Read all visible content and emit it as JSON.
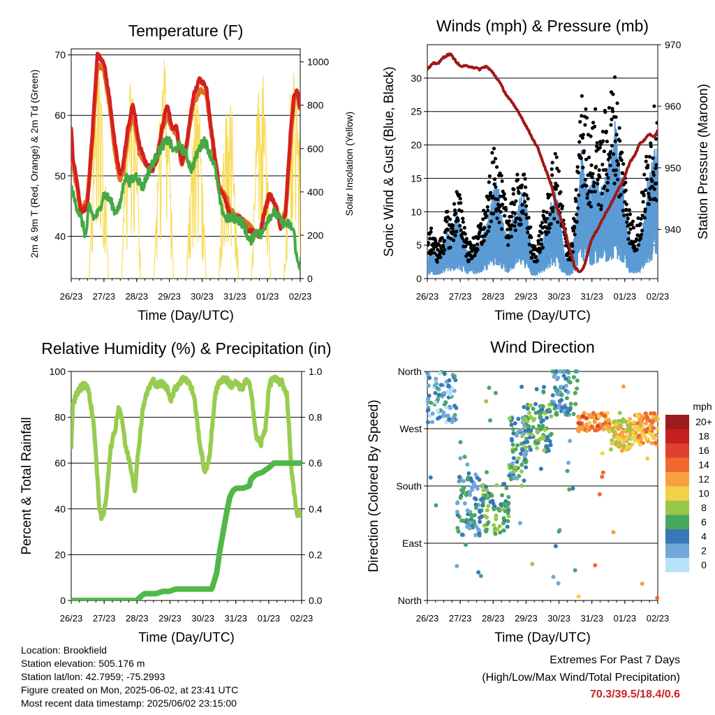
{
  "day_ticks": [
    "26/23",
    "27/23",
    "28/23",
    "29/23",
    "30/23",
    "31/23",
    "01/23",
    "02/23"
  ],
  "chart_data": [
    {
      "type": "line",
      "title": "Temperature (F)",
      "xlabel": "Time (Day/UTC)",
      "ylabel": "2m & 9m T (Red, Orange) & 2m Td (Green)",
      "ylabel_right": "Solar Insolation (Yellow)",
      "ylim": [
        33,
        71
      ],
      "ylim_right": [
        0,
        1060
      ],
      "yticks": [
        "40",
        "50",
        "60",
        "70"
      ],
      "yticks_right": [
        "0",
        "200",
        "400",
        "600",
        "800",
        "1000"
      ],
      "grid": "horizontal",
      "x_days": [
        0,
        7.05
      ],
      "series": [
        {
          "color": "#e07020",
          "axis": "left",
          "width": 6,
          "x": [
            0,
            0.05,
            0.15,
            0.3,
            0.5,
            0.65,
            0.8,
            1.0,
            1.2,
            1.35,
            1.5,
            1.6,
            1.75,
            1.9,
            2.1,
            2.3,
            2.5,
            2.65,
            2.8,
            2.95,
            3.1,
            3.25,
            3.4,
            3.55,
            3.75,
            3.95,
            4.15,
            4.3,
            4.45,
            4.55,
            4.7,
            4.8,
            4.9,
            5.0,
            5.2,
            5.4,
            5.6,
            5.8,
            5.95,
            6.1,
            6.3,
            6.45,
            6.6,
            6.75,
            6.85,
            6.95,
            7.05
          ],
          "y": [
            57,
            52,
            49,
            44,
            46,
            56,
            68,
            68,
            61,
            54,
            49,
            51,
            57,
            60,
            54,
            52,
            51,
            53,
            58,
            60,
            58,
            57,
            52,
            55,
            62,
            64,
            64,
            58,
            52,
            48,
            47,
            46,
            44,
            44,
            43,
            42,
            41,
            40,
            44,
            47,
            45,
            42,
            44,
            56,
            62,
            64,
            61
          ]
        },
        {
          "color": "#d42020",
          "axis": "left",
          "width": 5,
          "x": [
            0,
            0.05,
            0.15,
            0.3,
            0.5,
            0.65,
            0.8,
            1.0,
            1.2,
            1.35,
            1.5,
            1.6,
            1.75,
            1.9,
            2.1,
            2.3,
            2.5,
            2.65,
            2.8,
            2.95,
            3.1,
            3.25,
            3.4,
            3.55,
            3.75,
            3.95,
            4.15,
            4.3,
            4.45,
            4.55,
            4.7,
            4.8,
            4.9,
            5.0,
            5.2,
            5.4,
            5.6,
            5.8,
            5.95,
            6.1,
            6.3,
            6.45,
            6.6,
            6.75,
            6.85,
            6.95,
            7.05
          ],
          "y": [
            58,
            53,
            50,
            44,
            45,
            57,
            70,
            69,
            62,
            55,
            50,
            52,
            58,
            62,
            55,
            52,
            51,
            53,
            58,
            62,
            58,
            58,
            52,
            55,
            63,
            66,
            65,
            58,
            52,
            48,
            47,
            45,
            43,
            43,
            43,
            41,
            41,
            40,
            44,
            47,
            45,
            41,
            44,
            57,
            63,
            64,
            61
          ]
        },
        {
          "color": "#45a845",
          "axis": "left",
          "width": 4,
          "x": [
            0,
            0.1,
            0.3,
            0.45,
            0.55,
            0.7,
            0.85,
            1.0,
            1.2,
            1.35,
            1.5,
            1.65,
            1.8,
            2.0,
            2.2,
            2.4,
            2.6,
            2.8,
            3.0,
            3.15,
            3.3,
            3.5,
            3.7,
            3.9,
            4.1,
            4.25,
            4.4,
            4.5,
            4.6,
            4.75,
            4.9,
            5.1,
            5.3,
            5.5,
            5.7,
            5.85,
            6.05,
            6.25,
            6.4,
            6.55,
            6.7,
            6.85,
            6.95,
            7.05
          ],
          "y": [
            48,
            46,
            43,
            40,
            45,
            43,
            44,
            47,
            46,
            44,
            45,
            50,
            49,
            50,
            48,
            51,
            53,
            55,
            56,
            54,
            55,
            54,
            51,
            54,
            56,
            54,
            52,
            49,
            45,
            43,
            43,
            43,
            42,
            39,
            41,
            40,
            43,
            44,
            43,
            42,
            42,
            41,
            36,
            35
          ]
        }
      ],
      "insolation_peaks_w_m2": [
        1020,
        1000,
        1040,
        900,
        980,
        1000,
        1040
      ]
    },
    {
      "type": "line",
      "title": "Winds (mph) & Pressure (mb)",
      "xlabel": "Time (Day/UTC)",
      "ylabel": "Sonic Wind & Gust (Blue, Black)",
      "ylabel_right": "Station Pressure (Maroon)",
      "ylim": [
        0,
        35
      ],
      "ylim_right": [
        932,
        970
      ],
      "yticks": [
        "0",
        "5",
        "10",
        "15",
        "20",
        "25",
        "30"
      ],
      "yticks_right": [
        "940",
        "950",
        "960",
        "970"
      ],
      "grid": "horizontal",
      "x_days": [
        0,
        7.05
      ],
      "pressure": {
        "color": "#a01818",
        "x": [
          0,
          0.2,
          0.35,
          0.5,
          0.7,
          0.85,
          1.0,
          1.3,
          1.6,
          1.8,
          2.0,
          2.2,
          2.4,
          2.6,
          2.8,
          3.0,
          3.2,
          3.4,
          3.6,
          3.8,
          4.0,
          4.2,
          4.4,
          4.5,
          4.65,
          4.8,
          5.0,
          5.2,
          5.4,
          5.6,
          5.8,
          6.0,
          6.2,
          6.35,
          6.5,
          6.65,
          6.8,
          6.95,
          7.05
        ],
        "y": [
          966,
          967,
          967,
          968,
          968.5,
          967.5,
          966.5,
          966.5,
          966,
          966.5,
          965.5,
          964,
          962,
          960.5,
          959,
          957,
          955,
          953,
          950,
          947,
          943,
          940,
          936,
          934,
          933,
          934,
          938,
          940,
          942,
          944,
          946,
          948,
          951,
          952,
          954,
          954.5,
          955.5,
          955,
          956
        ]
      },
      "wind": {
        "color": "#5b9bd5",
        "x": [
          0,
          0.15,
          0.3,
          0.45,
          0.6,
          0.75,
          0.9,
          1.05,
          1.25,
          1.45,
          1.65,
          1.85,
          2.0,
          2.15,
          2.3,
          2.45,
          2.6,
          2.75,
          2.9,
          3.05,
          3.2,
          3.35,
          3.5,
          3.65,
          3.8,
          3.95,
          4.1,
          4.25,
          4.4,
          4.55,
          4.7,
          4.85,
          5.0,
          5.15,
          5.3,
          5.45,
          5.6,
          5.75,
          5.9,
          6.05,
          6.2,
          6.35,
          6.5,
          6.65,
          6.8,
          6.95,
          7.05
        ],
        "y": [
          2,
          3,
          2,
          3,
          5,
          4,
          7,
          5,
          3,
          3,
          4,
          6,
          9,
          10,
          6,
          4,
          6,
          8,
          9,
          7,
          2,
          2,
          4,
          5,
          8,
          9,
          5,
          2,
          2,
          6,
          13,
          11,
          9,
          12,
          9,
          11,
          13,
          16,
          12,
          8,
          4,
          3,
          4,
          7,
          12,
          14,
          13
        ]
      },
      "gust": {
        "color": "#000000",
        "x": [
          0,
          0.15,
          0.3,
          0.45,
          0.6,
          0.75,
          0.9,
          1.05,
          1.25,
          1.45,
          1.65,
          1.85,
          2.0,
          2.15,
          2.3,
          2.45,
          2.6,
          2.75,
          2.9,
          3.05,
          3.2,
          3.35,
          3.5,
          3.65,
          3.8,
          3.95,
          4.1,
          4.25,
          4.4,
          4.55,
          4.7,
          4.85,
          5.0,
          5.15,
          5.3,
          5.45,
          5.6,
          5.75,
          5.9,
          6.05,
          6.2,
          6.35,
          6.5,
          6.65,
          6.8,
          6.95,
          7.05
        ],
        "y": [
          5,
          6,
          4,
          5,
          8,
          7,
          11,
          9,
          4,
          5,
          7,
          10,
          15,
          15,
          11,
          8,
          10,
          12,
          13,
          11,
          4,
          4,
          7,
          9,
          13,
          15,
          10,
          5,
          4,
          10,
          22,
          20,
          17,
          20,
          16,
          20,
          22,
          24,
          18,
          13,
          8,
          6,
          8,
          13,
          18,
          20,
          19
        ]
      },
      "gust_max": 32
    },
    {
      "type": "line",
      "title": "Relative Humidity (%) & Precipitation (in)",
      "xlabel": "Time (Day/UTC)",
      "ylabel": "Percent & Total Rainfall",
      "ylim": [
        0,
        100
      ],
      "ylim_right": [
        0,
        1.0
      ],
      "yticks": [
        "0",
        "20",
        "40",
        "60",
        "80",
        "100"
      ],
      "yticks_right": [
        "0.0",
        "0.2",
        "0.4",
        "0.6",
        "0.8",
        "1.0"
      ],
      "grid": "horizontal",
      "x_days": [
        0,
        7.05
      ],
      "series": [
        {
          "color": "#98cc50",
          "axis": "left",
          "width": 6,
          "x": [
            0,
            0.05,
            0.15,
            0.3,
            0.45,
            0.55,
            0.7,
            0.85,
            0.95,
            1.05,
            1.2,
            1.35,
            1.45,
            1.55,
            1.65,
            1.8,
            1.95,
            2.05,
            2.2,
            2.35,
            2.5,
            2.65,
            2.8,
            2.95,
            3.05,
            3.2,
            3.35,
            3.5,
            3.6,
            3.75,
            3.95,
            4.1,
            4.25,
            4.4,
            4.55,
            4.7,
            4.9,
            5.05,
            5.2,
            5.35,
            5.5,
            5.65,
            5.8,
            5.95,
            6.05,
            6.15,
            6.3,
            6.45,
            6.6,
            6.75,
            6.9,
            7.05
          ],
          "y": [
            66,
            85,
            90,
            93,
            95,
            90,
            76,
            42,
            35,
            42,
            66,
            75,
            85,
            80,
            68,
            60,
            48,
            65,
            85,
            92,
            96,
            94,
            95,
            92,
            88,
            93,
            96,
            97,
            95,
            90,
            67,
            55,
            65,
            90,
            96,
            97,
            94,
            95,
            92,
            96,
            93,
            72,
            68,
            76,
            93,
            97,
            96,
            95,
            90,
            55,
            38,
            37
          ]
        },
        {
          "color": "#50b848",
          "axis": "right",
          "width": 8,
          "x": [
            0,
            0.5,
            1.0,
            1.5,
            2.0,
            2.15,
            2.25,
            2.4,
            2.6,
            2.8,
            3.0,
            3.2,
            3.4,
            3.6,
            3.8,
            4.0,
            4.3,
            4.45,
            4.55,
            4.65,
            4.75,
            4.85,
            4.95,
            5.05,
            5.25,
            5.45,
            5.5,
            5.65,
            5.85,
            6.05,
            6.2,
            6.4,
            6.6,
            6.8,
            7.05
          ],
          "y": [
            0.0,
            0.0,
            0.0,
            0.0,
            0.0,
            0.02,
            0.03,
            0.03,
            0.03,
            0.04,
            0.04,
            0.05,
            0.05,
            0.05,
            0.05,
            0.05,
            0.05,
            0.12,
            0.22,
            0.3,
            0.38,
            0.45,
            0.48,
            0.49,
            0.49,
            0.5,
            0.53,
            0.55,
            0.56,
            0.58,
            0.6,
            0.6,
            0.6,
            0.6,
            0.6
          ]
        }
      ]
    },
    {
      "type": "scatter",
      "title": "Wind Direction",
      "xlabel": "Time (Day/UTC)",
      "ylabel": "Direction (Colored By Speed)",
      "yticks": [
        "North",
        "West",
        "South",
        "East",
        "North"
      ],
      "grid": "horizontal",
      "x_days": [
        0,
        7.05
      ],
      "colorbar_title": "mph",
      "colorbar_labels": [
        "20+",
        "18",
        "16",
        "14",
        "12",
        "10",
        "8",
        "6",
        "4",
        "2",
        "0"
      ],
      "colorbar_colors": [
        "#9a1c1c",
        "#c42020",
        "#e04030",
        "#f06830",
        "#f8a040",
        "#f2d048",
        "#98c848",
        "#48a860",
        "#3878b8",
        "#70a8dc",
        "#b8e0f8"
      ],
      "direction_deg_by_period": [
        {
          "x": [
            0,
            0.9
          ],
          "dir_deg": 320,
          "spread": 40,
          "speed": 3
        },
        {
          "x": [
            0.9,
            1.6
          ],
          "dir_deg": 150,
          "spread": 50,
          "speed": 4
        },
        {
          "x": [
            1.6,
            2.5
          ],
          "dir_deg": 145,
          "spread": 40,
          "speed": 6
        },
        {
          "x": [
            2.5,
            3.05
          ],
          "dir_deg": 240,
          "spread": 50,
          "speed": 5
        },
        {
          "x": [
            3.05,
            3.8
          ],
          "dir_deg": 270,
          "spread": 40,
          "speed": 6
        },
        {
          "x": [
            3.8,
            4.6
          ],
          "dir_deg": 330,
          "spread": 40,
          "speed": 4
        },
        {
          "x": [
            4.6,
            5.6
          ],
          "dir_deg": 280,
          "spread": 15,
          "speed": 13
        },
        {
          "x": [
            5.6,
            6.3
          ],
          "dir_deg": 260,
          "spread": 25,
          "speed": 10
        },
        {
          "x": [
            6.3,
            7.05
          ],
          "dir_deg": 270,
          "spread": 25,
          "speed": 12
        }
      ]
    }
  ],
  "info": {
    "location": "Location: Brookfield",
    "elevation": "Station elevation: 505.176 m",
    "latlon": "Station lat/lon: 42.7959; -75.2993",
    "created": "Figure created on Mon, 2025-06-02, at 23:41 UTC",
    "recent": "Most recent data timestamp: 2025/06/02 23:15:00"
  },
  "extremes": {
    "title": "Extremes For Past 7 Days",
    "subtitle": "(High/Low/Max Wind/Total Precipitation)",
    "values": "70.3/39.5/18.4/0.6",
    "color": "#cc2222"
  }
}
